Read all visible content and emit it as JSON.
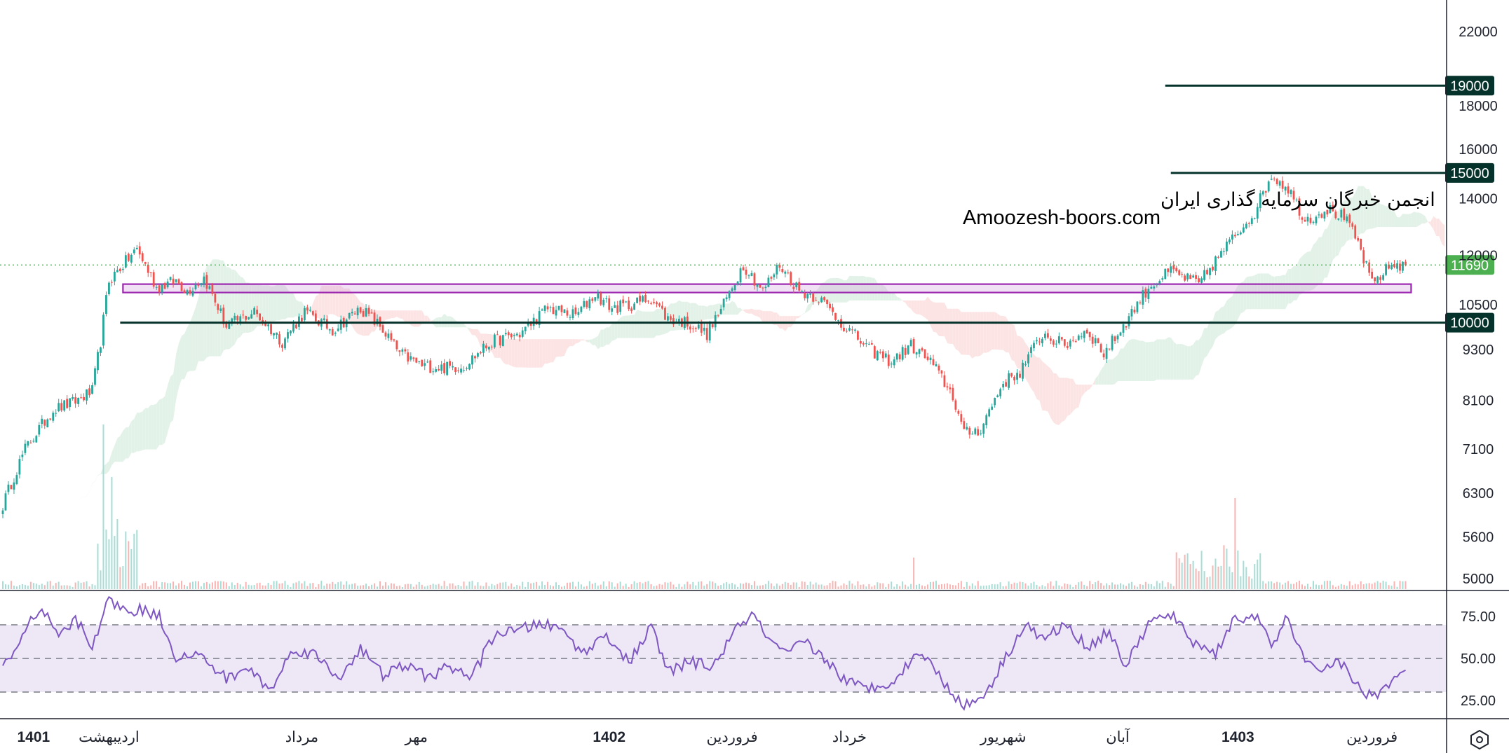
{
  "chart_data": {
    "type": "candlestick",
    "price_axis": {
      "scale": "log",
      "ylim": [
        4850,
        23500
      ],
      "ticks": [
        "22000",
        "18000",
        "16000",
        "14000",
        "12000",
        "10500",
        "9300",
        "8100",
        "7100",
        "6300",
        "5600",
        "5000"
      ]
    },
    "time_axis": {
      "labels": [
        {
          "text": "1401",
          "bold": true,
          "bar": 11
        },
        {
          "text": "اردیبهشت",
          "bold": false,
          "bar": 38
        },
        {
          "text": "مرداد",
          "bold": false,
          "bar": 107
        },
        {
          "text": "مهر",
          "bold": false,
          "bar": 148
        },
        {
          "text": "1402",
          "bold": true,
          "bar": 217
        },
        {
          "text": "فروردین",
          "bold": false,
          "bar": 261
        },
        {
          "text": "خرداد",
          "bold": false,
          "bar": 303
        },
        {
          "text": "شهریور",
          "bold": false,
          "bar": 358
        },
        {
          "text": "آبان",
          "bold": false,
          "bar": 399
        },
        {
          "text": "1403",
          "bold": true,
          "bar": 442
        },
        {
          "text": "فروردین",
          "bold": false,
          "bar": 490
        }
      ]
    },
    "series_anchors": [
      [
        0,
        6100
      ],
      [
        8,
        7100
      ],
      [
        18,
        7900
      ],
      [
        25,
        8050
      ],
      [
        32,
        8300
      ],
      [
        35,
        9500
      ],
      [
        38,
        11200
      ],
      [
        48,
        12200
      ],
      [
        55,
        11000
      ],
      [
        62,
        11200
      ],
      [
        66,
        10900
      ],
      [
        72,
        11300
      ],
      [
        80,
        9900
      ],
      [
        90,
        10300
      ],
      [
        100,
        9500
      ],
      [
        108,
        10300
      ],
      [
        118,
        9800
      ],
      [
        128,
        10400
      ],
      [
        135,
        9900
      ],
      [
        142,
        9200
      ],
      [
        150,
        8900
      ],
      [
        158,
        8850
      ],
      [
        165,
        8900
      ],
      [
        175,
        9500
      ],
      [
        185,
        9700
      ],
      [
        195,
        10400
      ],
      [
        205,
        10200
      ],
      [
        212,
        10800
      ],
      [
        218,
        10400
      ],
      [
        225,
        10500
      ],
      [
        232,
        10700
      ],
      [
        238,
        10100
      ],
      [
        245,
        10000
      ],
      [
        252,
        9700
      ],
      [
        258,
        10500
      ],
      [
        265,
        11700
      ],
      [
        272,
        10900
      ],
      [
        278,
        11700
      ],
      [
        285,
        10900
      ],
      [
        292,
        10700
      ],
      [
        300,
        10000
      ],
      [
        310,
        9300
      ],
      [
        318,
        9000
      ],
      [
        325,
        9400
      ],
      [
        332,
        9000
      ],
      [
        340,
        8200
      ],
      [
        344,
        7400
      ],
      [
        350,
        7500
      ],
      [
        358,
        8500
      ],
      [
        364,
        8750
      ],
      [
        372,
        9700
      ],
      [
        380,
        9400
      ],
      [
        388,
        9800
      ],
      [
        394,
        9200
      ],
      [
        400,
        9800
      ],
      [
        410,
        11000
      ],
      [
        418,
        11500
      ],
      [
        428,
        11100
      ],
      [
        438,
        12300
      ],
      [
        448,
        13500
      ],
      [
        454,
        14900
      ],
      [
        460,
        14400
      ],
      [
        466,
        13200
      ],
      [
        474,
        13600
      ],
      [
        480,
        13300
      ],
      [
        485,
        12400
      ],
      [
        490,
        11100
      ],
      [
        497,
        11700
      ],
      [
        502,
        11690
      ]
    ],
    "rsi_anchors": [
      [
        0,
        46
      ],
      [
        5,
        55
      ],
      [
        10,
        72
      ],
      [
        15,
        77
      ],
      [
        20,
        62
      ],
      [
        26,
        73
      ],
      [
        32,
        58
      ],
      [
        38,
        85
      ],
      [
        44,
        78
      ],
      [
        50,
        79
      ],
      [
        56,
        75
      ],
      [
        62,
        51
      ],
      [
        70,
        52
      ],
      [
        80,
        38
      ],
      [
        88,
        44
      ],
      [
        96,
        31
      ],
      [
        104,
        56
      ],
      [
        112,
        52
      ],
      [
        120,
        38
      ],
      [
        128,
        56
      ],
      [
        136,
        40
      ],
      [
        144,
        46
      ],
      [
        152,
        39
      ],
      [
        160,
        45
      ],
      [
        168,
        39
      ],
      [
        176,
        65
      ],
      [
        184,
        66
      ],
      [
        192,
        71
      ],
      [
        200,
        67
      ],
      [
        208,
        53
      ],
      [
        216,
        65
      ],
      [
        224,
        47
      ],
      [
        232,
        69
      ],
      [
        238,
        42
      ],
      [
        246,
        48
      ],
      [
        254,
        45
      ],
      [
        262,
        66
      ],
      [
        268,
        77
      ],
      [
        274,
        61
      ],
      [
        280,
        52
      ],
      [
        287,
        60
      ],
      [
        294,
        50
      ],
      [
        302,
        36
      ],
      [
        310,
        32
      ],
      [
        320,
        38
      ],
      [
        328,
        55
      ],
      [
        336,
        38
      ],
      [
        344,
        21
      ],
      [
        352,
        30
      ],
      [
        360,
        54
      ],
      [
        366,
        71
      ],
      [
        372,
        61
      ],
      [
        380,
        70
      ],
      [
        388,
        57
      ],
      [
        396,
        66
      ],
      [
        402,
        45
      ],
      [
        410,
        71
      ],
      [
        418,
        76
      ],
      [
        426,
        60
      ],
      [
        434,
        53
      ],
      [
        440,
        72
      ],
      [
        448,
        76
      ],
      [
        454,
        57
      ],
      [
        460,
        75
      ],
      [
        466,
        46
      ],
      [
        472,
        44
      ],
      [
        478,
        49
      ],
      [
        484,
        35
      ],
      [
        490,
        27
      ],
      [
        496,
        35
      ],
      [
        502,
        42
      ]
    ],
    "bar_count": 503,
    "last_price": "11690",
    "horizontal_levels": [
      {
        "label": "19000",
        "color": "#05322a",
        "from_bar": 416
      },
      {
        "label": "15000",
        "color": "#05322a",
        "from_bar": 418
      },
      {
        "label": "10000",
        "color": "#05322a",
        "from_bar": 42
      }
    ],
    "support_zone": {
      "low": 10850,
      "high": 11100,
      "from_bar": 43,
      "to_bar": 504,
      "color": "#9c27b0"
    },
    "rsi": {
      "ticks": [
        "75.00",
        "50.00",
        "25.00"
      ],
      "upper_band": 70,
      "middle_band": 50,
      "lower_band": 30,
      "line_color": "#7e57c2",
      "band_fill": "#ede7f6"
    },
    "colors": {
      "up_candle": "#26a69a",
      "down_candle": "#ef5350",
      "cloud_bull": "#e3f2e8",
      "cloud_bear": "#fde4e4",
      "last_price_badge": "#4caf50",
      "level_badge": "#05322a",
      "grid_border": "#1e222d"
    }
  },
  "watermark": {
    "line1": "انجمن خبرگان سرمایه گذاری ایران",
    "line2": "Amoozesh-boors.com"
  },
  "icons": {
    "settings": "chart-settings-icon"
  }
}
